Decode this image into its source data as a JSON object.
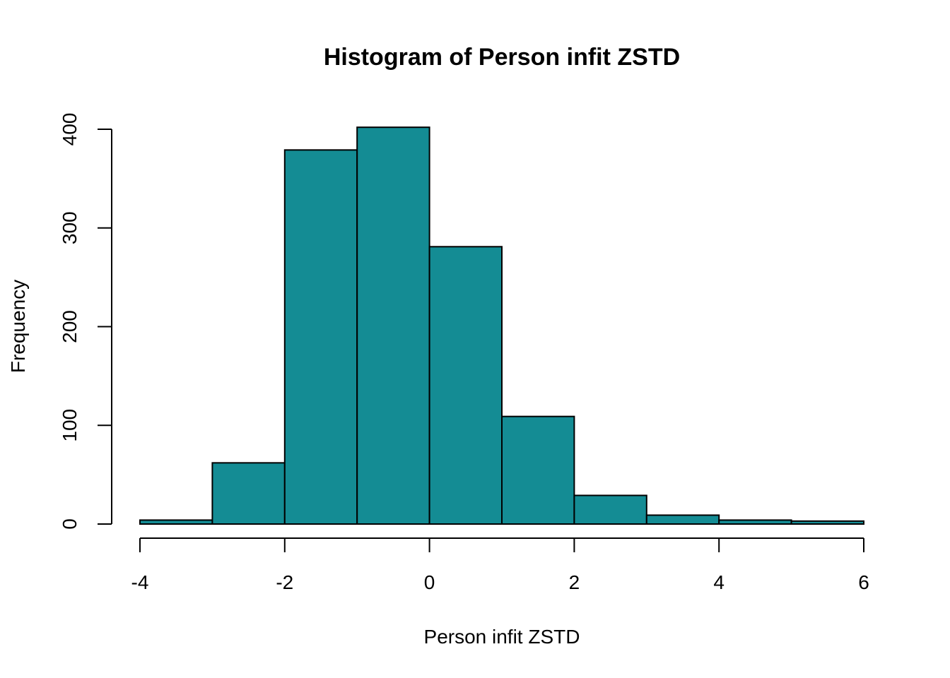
{
  "chart_data": {
    "type": "bar",
    "title": "Histogram of Person infit ZSTD",
    "xlabel": "Person infit ZSTD",
    "ylabel": "Frequency",
    "bins": [
      {
        "start": -4,
        "end": -3,
        "count": 4
      },
      {
        "start": -3,
        "end": -2,
        "count": 62
      },
      {
        "start": -2,
        "end": -1,
        "count": 379
      },
      {
        "start": -1,
        "end": 0,
        "count": 402
      },
      {
        "start": 0,
        "end": 1,
        "count": 281
      },
      {
        "start": 1,
        "end": 2,
        "count": 109
      },
      {
        "start": 2,
        "end": 3,
        "count": 29
      },
      {
        "start": 3,
        "end": 4,
        "count": 9
      },
      {
        "start": 4,
        "end": 5,
        "count": 4
      },
      {
        "start": 5,
        "end": 6,
        "count": 3
      }
    ],
    "xlim": [
      -4,
      6
    ],
    "ylim": [
      0,
      400
    ],
    "x_ticks": [
      "-4",
      "-2",
      "0",
      "2",
      "4",
      "6"
    ],
    "y_ticks": [
      "0",
      "100",
      "200",
      "300",
      "400"
    ],
    "grid": false,
    "colors": {
      "bar_fill": "#148C94",
      "bar_border": "#000000"
    }
  }
}
